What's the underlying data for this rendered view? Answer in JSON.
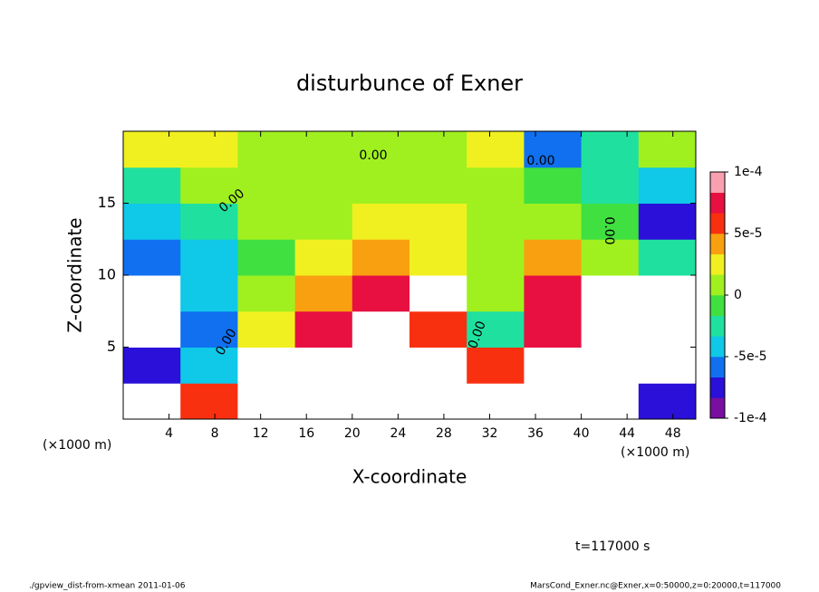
{
  "chart_data": {
    "type": "heatmap",
    "title": "disturbunce of Exner",
    "x_label": "X-coordinate",
    "y_label": "Z-coordinate",
    "x_unit_labels": [
      "(×1000 m)",
      "(×1000 m)"
    ],
    "time_label": "t=117000 s",
    "footer_left": "./gpview_dist-from-xmean  2011-01-06",
    "footer_right": "MarsCond_Exner.nc@Exner,x=0:50000,z=0:20000,t=117000",
    "annotations": [
      "0.00",
      "0.00",
      "0.00",
      "0.00",
      "0.00",
      "0.00"
    ],
    "x": [
      2.5,
      7.5,
      12.5,
      17.5,
      22.5,
      27.5,
      32.5,
      37.5,
      42.5,
      47.5
    ],
    "y": [
      1.25,
      3.75,
      6.25,
      8.75,
      11.25,
      13.75,
      16.25,
      18.75
    ],
    "values": [
      [
        -0.00012,
        5e-05,
        0.00012,
        0.00012,
        0.00012,
        0.00012,
        0.00012,
        -0.00012,
        -0.00012,
        -8e-05
      ],
      [
        -8e-05,
        -4e-05,
        0.00012,
        0.00012,
        0.00012,
        0.00012,
        6e-05,
        0.00012,
        -0.00012,
        -0.00012
      ],
      [
        -0.00012,
        -6e-05,
        3e-05,
        7e-05,
        0.00012,
        6e-05,
        -3e-05,
        8e-05,
        0.00012,
        -0.00012
      ],
      [
        -0.00012,
        -5e-05,
        0,
        4e-05,
        8e-05,
        0.00012,
        0,
        7e-05,
        0.00012,
        -0.00012
      ],
      [
        -6e-05,
        -4e-05,
        -1e-05,
        2e-05,
        4e-05,
        3e-05,
        5e-06,
        4e-05,
        1e-05,
        -3e-05
      ],
      [
        -5e-05,
        -2e-05,
        5e-06,
        1e-05,
        2e-05,
        2e-05,
        1e-05,
        1.5e-05,
        -1e-05,
        -7e-05
      ],
      [
        -2e-05,
        0,
        5e-06,
        0,
        0,
        0,
        0,
        -1e-05,
        -3e-05,
        -5e-05
      ],
      [
        2e-05,
        3e-05,
        1e-05,
        5e-06,
        1e-05,
        0,
        2e-05,
        -6e-05,
        -3e-05,
        1e-05
      ]
    ],
    "xlim": [
      0,
      50
    ],
    "ylim": [
      0,
      20
    ],
    "xticks": [
      4,
      8,
      12,
      16,
      20,
      24,
      28,
      32,
      36,
      40,
      44,
      48
    ],
    "yticks": [
      5,
      10,
      15
    ],
    "clim": [
      -0.0001,
      0.0001
    ],
    "colorbar_ticks": [
      {
        "value": 0.0001,
        "label": "1e-4"
      },
      {
        "value": 5e-05,
        "label": "5e-5"
      },
      0,
      {
        "value": -5e-05,
        "label": "-5e-5"
      },
      {
        "value": -0.0001,
        "label": "-1e-4"
      }
    ],
    "colormap": [
      "#7a0ea0",
      "#2a10d8",
      "#1070f0",
      "#10c8e8",
      "#20e0a0",
      "#40e040",
      "#a0f020",
      "#f0f020",
      "#f8a010",
      "#f83010",
      "#e81040",
      "#f8a0b0"
    ],
    "out_of_range_color": "#ffffff"
  }
}
